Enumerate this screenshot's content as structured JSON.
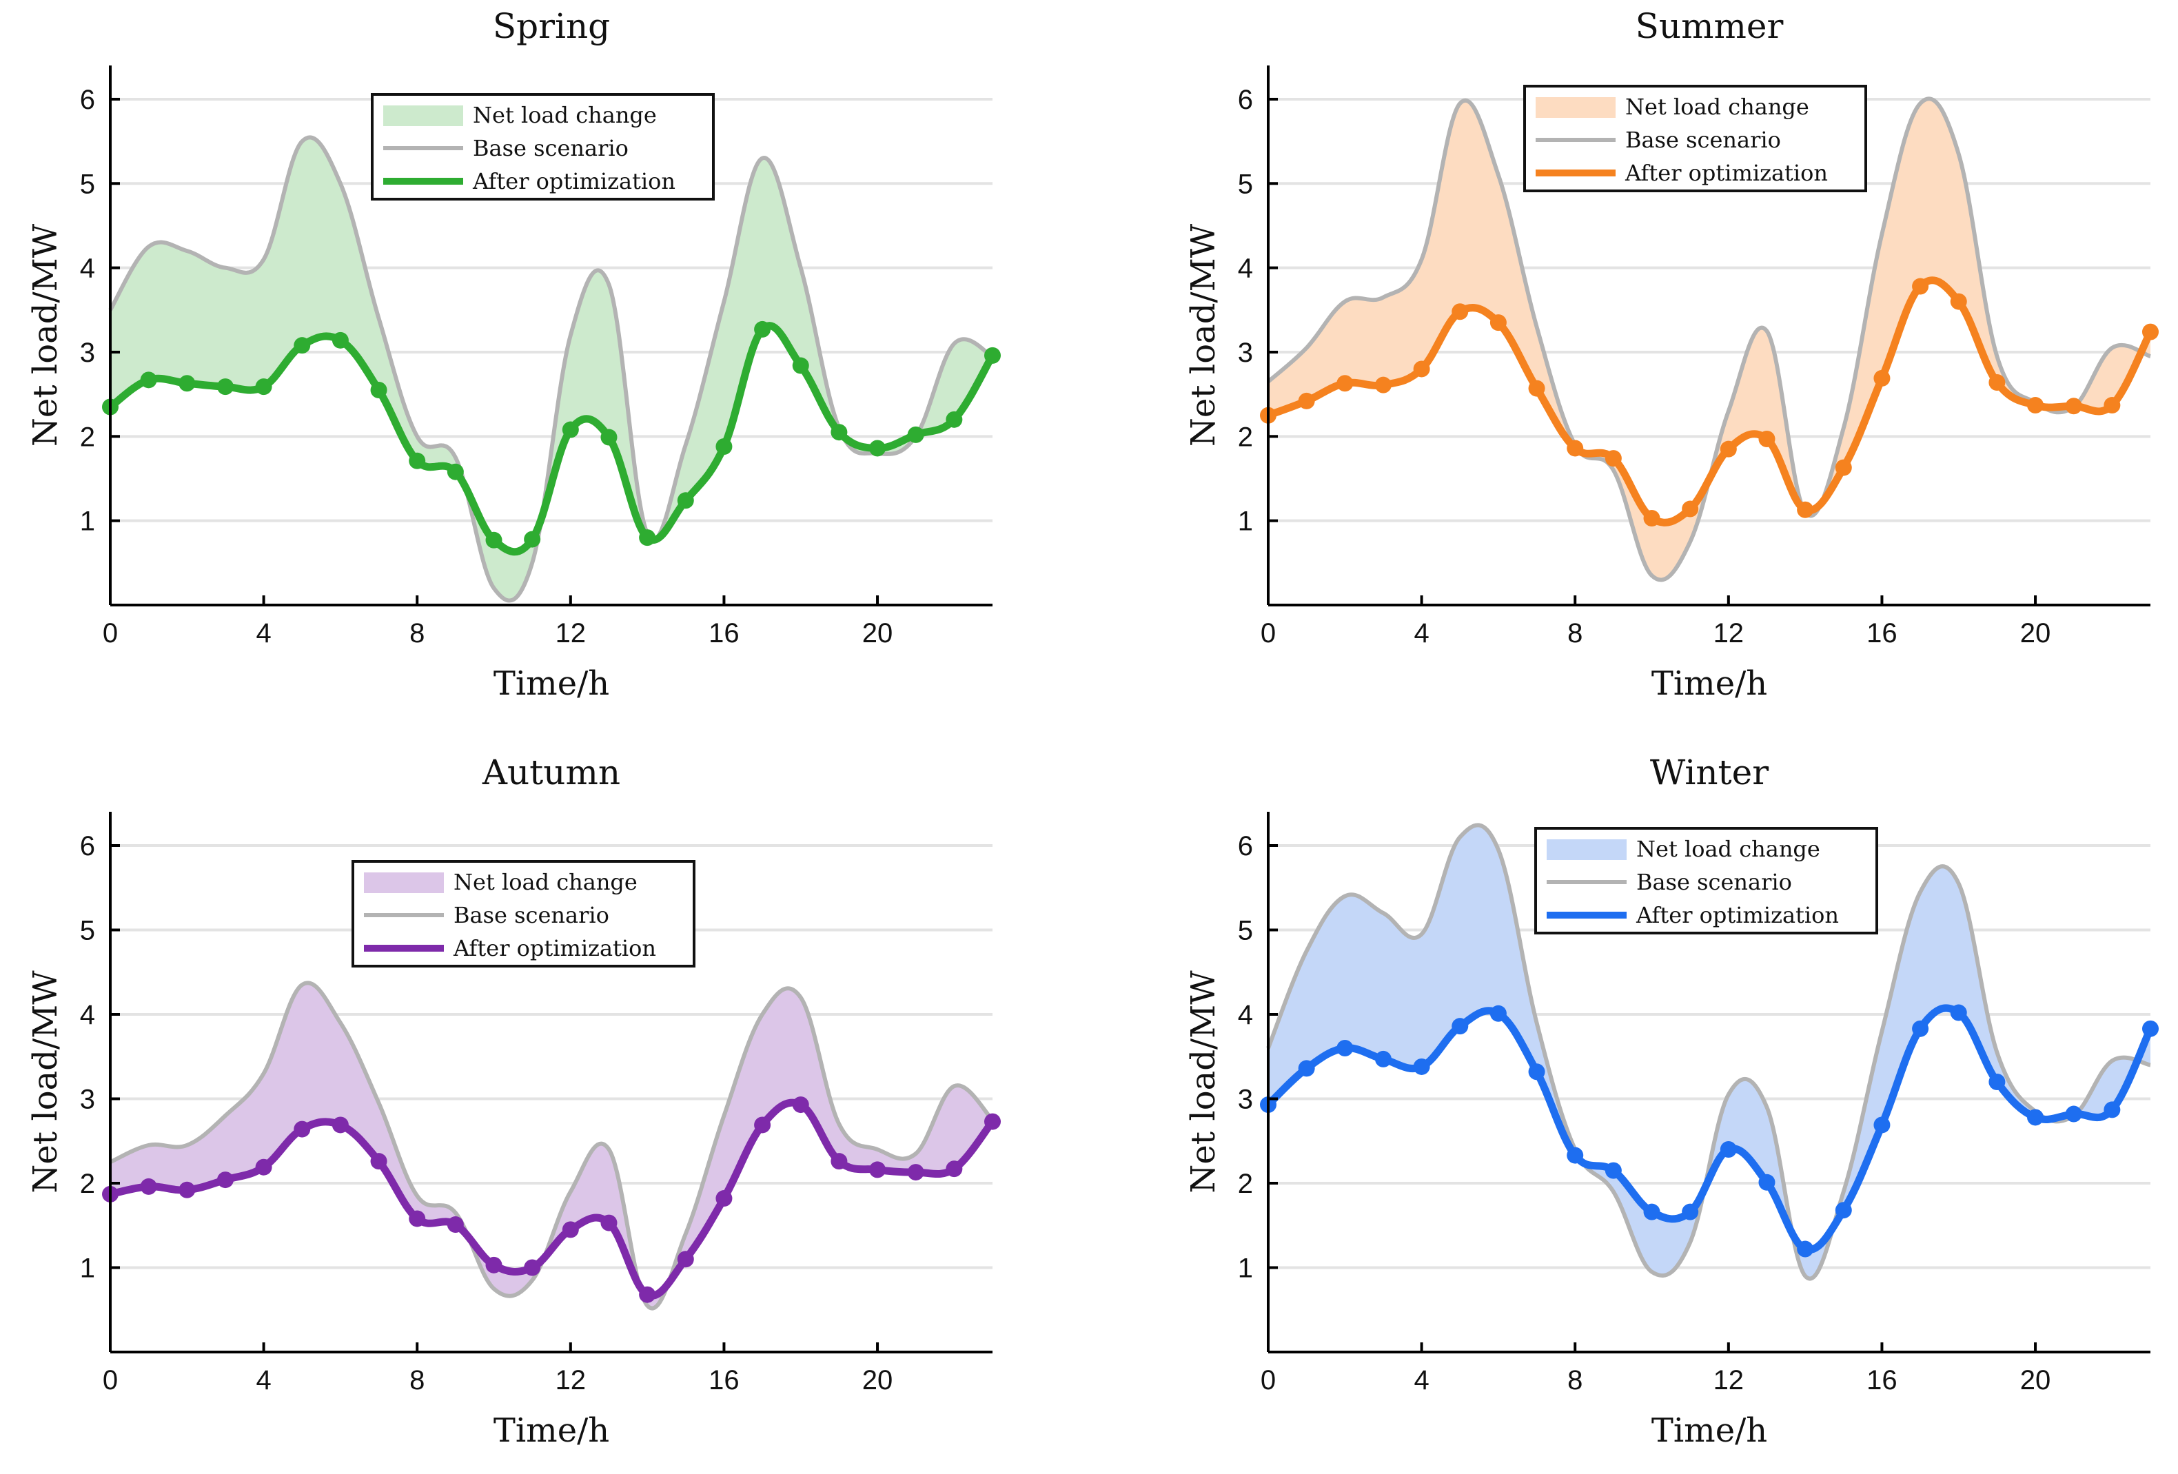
{
  "chart_data": [
    {
      "type": "line",
      "title": "Spring",
      "xlabel": "Time/h",
      "ylabel": "Net load/MW",
      "xlim": [
        0,
        23
      ],
      "ylim": [
        0,
        6.4
      ],
      "xticks": [
        0,
        4,
        8,
        12,
        16,
        20
      ],
      "yticks": [
        1,
        2,
        3,
        4,
        5,
        6
      ],
      "grid": "horizontal",
      "legend_position": "top-center",
      "colors": {
        "line": "#2eac31",
        "fill": "#cdeacd",
        "base": "#b3b3b3"
      },
      "legend": [
        "Net load change",
        "Base scenario",
        "After optimization"
      ],
      "x": [
        0,
        1,
        2,
        3,
        4,
        5,
        6,
        7,
        8,
        9,
        10,
        11,
        12,
        13,
        14,
        15,
        16,
        17,
        18,
        19,
        20,
        21,
        22,
        23
      ],
      "series": [
        {
          "name": "Base scenario",
          "values": [
            3.5,
            4.25,
            4.2,
            4.0,
            4.1,
            5.5,
            5.0,
            3.4,
            2.0,
            1.75,
            0.2,
            0.5,
            3.2,
            3.8,
            0.85,
            1.9,
            3.6,
            5.3,
            4.0,
            2.1,
            1.8,
            2.0,
            3.1,
            2.95
          ]
        },
        {
          "name": "After optimization",
          "values": [
            2.35,
            2.67,
            2.63,
            2.59,
            2.59,
            3.08,
            3.14,
            2.55,
            1.71,
            1.58,
            0.77,
            0.78,
            2.08,
            1.99,
            0.8,
            1.24,
            1.88,
            3.27,
            2.84,
            2.05,
            1.86,
            2.02,
            2.2,
            2.96
          ]
        }
      ]
    },
    {
      "type": "line",
      "title": "Summer",
      "xlabel": "Time/h",
      "ylabel": "Net load/MW",
      "xlim": [
        0,
        23
      ],
      "ylim": [
        0,
        6.4
      ],
      "xticks": [
        0,
        4,
        8,
        12,
        16,
        20
      ],
      "yticks": [
        1,
        2,
        3,
        4,
        5,
        6
      ],
      "grid": "horizontal",
      "legend_position": "top-center",
      "colors": {
        "line": "#f5821f",
        "fill": "#fddcc1",
        "base": "#b3b3b3"
      },
      "legend": [
        "Net load change",
        "Base scenario",
        "After optimization"
      ],
      "x": [
        0,
        1,
        2,
        3,
        4,
        5,
        6,
        7,
        8,
        9,
        10,
        11,
        12,
        13,
        14,
        15,
        16,
        17,
        18,
        19,
        20,
        21,
        22,
        23
      ],
      "series": [
        {
          "name": "Base scenario",
          "values": [
            2.65,
            3.05,
            3.6,
            3.65,
            4.1,
            5.95,
            5.1,
            3.3,
            1.9,
            1.6,
            0.35,
            0.75,
            2.3,
            3.25,
            1.1,
            2.1,
            4.4,
            5.95,
            5.35,
            2.95,
            2.4,
            2.35,
            3.05,
            2.95
          ]
        },
        {
          "name": "After optimization",
          "values": [
            2.25,
            2.42,
            2.63,
            2.61,
            2.8,
            3.48,
            3.35,
            2.57,
            1.86,
            1.74,
            1.03,
            1.14,
            1.85,
            1.97,
            1.13,
            1.63,
            2.69,
            3.78,
            3.6,
            2.64,
            2.37,
            2.36,
            2.37,
            3.24
          ]
        }
      ]
    },
    {
      "type": "line",
      "title": "Autumn",
      "xlabel": "Time/h",
      "ylabel": "Net load/MW",
      "xlim": [
        0,
        23
      ],
      "ylim": [
        0,
        6.4
      ],
      "xticks": [
        0,
        4,
        8,
        12,
        16,
        20
      ],
      "yticks": [
        1,
        2,
        3,
        4,
        5,
        6
      ],
      "grid": "horizontal",
      "legend_position": "top-center",
      "colors": {
        "line": "#7e2aaa",
        "fill": "#dcc6e8",
        "base": "#b3b3b3"
      },
      "legend": [
        "Net load change",
        "Base scenario",
        "After optimization"
      ],
      "x": [
        0,
        1,
        2,
        3,
        4,
        5,
        6,
        7,
        8,
        9,
        10,
        11,
        12,
        13,
        14,
        15,
        16,
        17,
        18,
        19,
        20,
        21,
        22,
        23
      ],
      "series": [
        {
          "name": "Base scenario",
          "values": [
            2.25,
            2.45,
            2.45,
            2.8,
            3.3,
            4.35,
            3.9,
            2.95,
            1.85,
            1.65,
            0.75,
            0.85,
            1.9,
            2.4,
            0.55,
            1.4,
            2.8,
            4.0,
            4.2,
            2.7,
            2.4,
            2.35,
            3.15,
            2.75
          ]
        },
        {
          "name": "After optimization",
          "values": [
            1.87,
            1.96,
            1.92,
            2.04,
            2.19,
            2.64,
            2.69,
            2.26,
            1.58,
            1.51,
            1.03,
            1.0,
            1.45,
            1.53,
            0.68,
            1.1,
            1.82,
            2.69,
            2.93,
            2.26,
            2.16,
            2.13,
            2.17,
            2.73
          ]
        }
      ]
    },
    {
      "type": "line",
      "title": "Winter",
      "xlabel": "Time/h",
      "ylabel": "Net load/MW",
      "xlim": [
        0,
        23
      ],
      "ylim": [
        0,
        6.4
      ],
      "xticks": [
        0,
        4,
        8,
        12,
        16,
        20
      ],
      "yticks": [
        1,
        2,
        3,
        4,
        5,
        6
      ],
      "grid": "horizontal",
      "legend_position": "top-center",
      "colors": {
        "line": "#1e6ef0",
        "fill": "#c4d7f8",
        "base": "#b3b3b3"
      },
      "legend": [
        "Net load change",
        "Base scenario",
        "After optimization"
      ],
      "x": [
        0,
        1,
        2,
        3,
        4,
        5,
        6,
        7,
        8,
        9,
        10,
        11,
        12,
        13,
        14,
        15,
        16,
        17,
        18,
        19,
        20,
        21,
        22,
        23
      ],
      "series": [
        {
          "name": "Base scenario",
          "values": [
            3.6,
            4.75,
            5.4,
            5.2,
            4.95,
            6.1,
            5.95,
            3.9,
            2.4,
            1.9,
            0.95,
            1.3,
            3.05,
            2.9,
            0.9,
            1.9,
            3.8,
            5.45,
            5.55,
            3.55,
            2.85,
            2.8,
            3.45,
            3.4
          ]
        },
        {
          "name": "After optimization",
          "values": [
            2.93,
            3.36,
            3.6,
            3.47,
            3.38,
            3.86,
            4.01,
            3.32,
            2.33,
            2.15,
            1.66,
            1.66,
            2.4,
            2.01,
            1.22,
            1.68,
            2.69,
            3.83,
            4.02,
            3.2,
            2.78,
            2.82,
            2.87,
            3.83
          ]
        }
      ]
    }
  ]
}
